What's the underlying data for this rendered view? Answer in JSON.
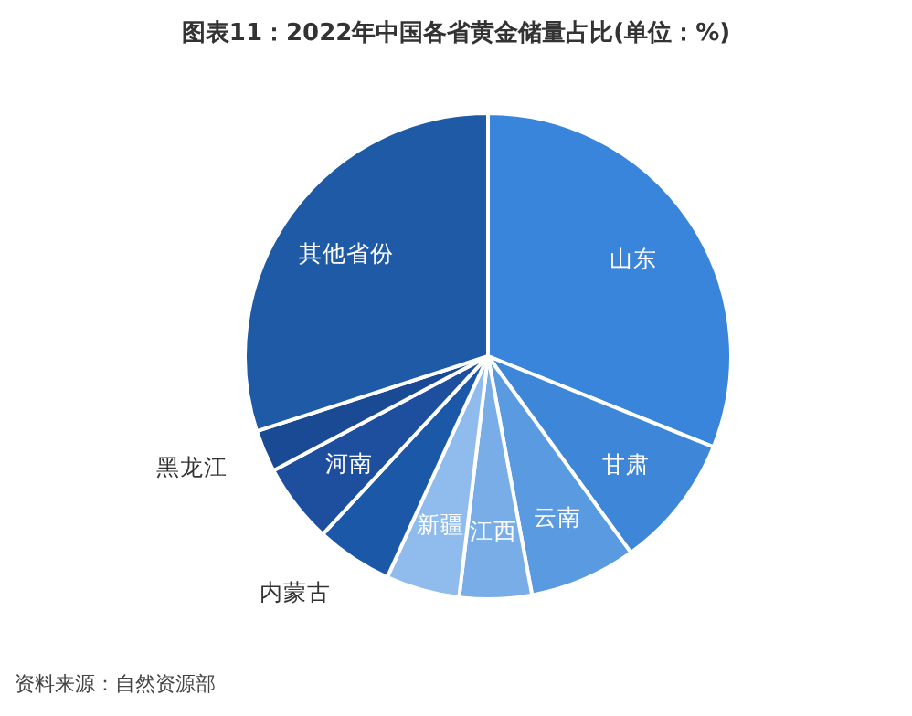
{
  "chart_data": {
    "type": "pie",
    "title": "图表11：2022年中国各省黄金储量占比(单位：%)",
    "categories": [
      "山东",
      "甘肃",
      "云南",
      "江西",
      "新疆",
      "内蒙古",
      "河南",
      "黑龙江",
      "其他省份"
    ],
    "values": [
      31.1,
      8.9,
      7.1,
      4.8,
      4.9,
      5.1,
      5.3,
      2.8,
      30.0
    ],
    "colors": [
      "#3a85dc",
      "#3d86d8",
      "#5a9ae0",
      "#78ade8",
      "#8fbcec",
      "#1c58a8",
      "#1d4f9e",
      "#1a4a94",
      "#1f5aa6"
    ],
    "annotations": [
      "资料来源：自然资源部"
    ]
  }
}
